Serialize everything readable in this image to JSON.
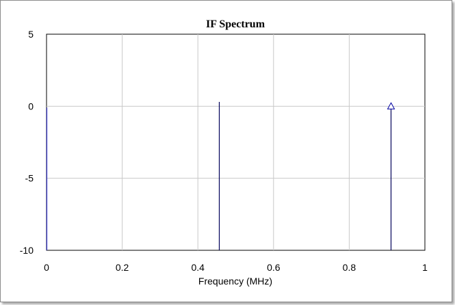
{
  "chart_data": {
    "type": "bar",
    "title": "IF Spectrum",
    "xlabel": "Frequency (MHz)",
    "ylabel": "",
    "xlim": [
      0,
      1
    ],
    "ylim": [
      -10,
      5
    ],
    "xticks": [
      "0",
      "0.2",
      "0.4",
      "0.6",
      "0.8",
      "1"
    ],
    "xtick_values": [
      0,
      0.2,
      0.4,
      0.6,
      0.8,
      1
    ],
    "yticks": [
      "5",
      "0",
      "-5",
      "-10"
    ],
    "ytick_values": [
      5,
      0,
      -5,
      -10
    ],
    "grid": true,
    "series": [
      {
        "x": [
          0,
          0.455,
          0.91
        ],
        "values": [
          -0.1,
          0.3,
          0.0
        ],
        "marker_on_last": "triangle",
        "color": "#00005a"
      }
    ],
    "colors": {
      "stem": "#00005a",
      "first_stem": "#3a3ad0",
      "grid": "#c8c8c8",
      "marker": "#0000a0"
    }
  }
}
